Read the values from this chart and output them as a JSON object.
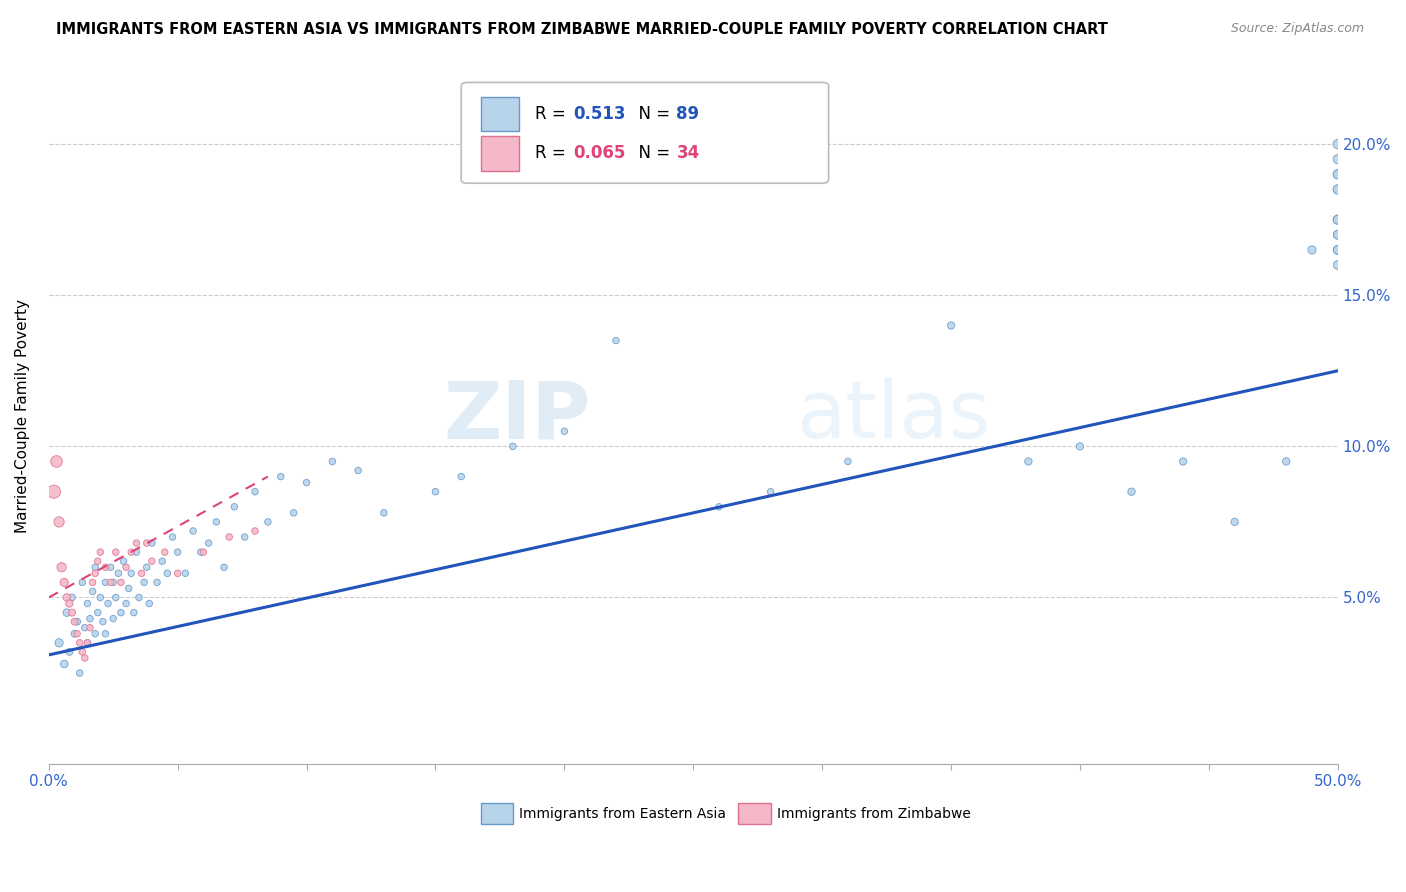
{
  "title": "IMMIGRANTS FROM EASTERN ASIA VS IMMIGRANTS FROM ZIMBABWE MARRIED-COUPLE FAMILY POVERTY CORRELATION CHART",
  "source": "Source: ZipAtlas.com",
  "ylabel": "Married-Couple Family Poverty",
  "series1_name": "Immigrants from Eastern Asia",
  "series2_name": "Immigrants from Zimbabwe",
  "series1_R": "0.513",
  "series1_N": "89",
  "series2_R": "0.065",
  "series2_N": "34",
  "series1_color": "#b8d4ea",
  "series1_edge": "#6699cc",
  "series2_color": "#f4b8c8",
  "series2_edge": "#e07090",
  "trendline1_color": "#2255bb",
  "trendline2_color": "#dd4477",
  "watermark_zip": "ZIP",
  "watermark_atlas": "atlas",
  "xlim": [
    0.0,
    0.5
  ],
  "ylim": [
    -0.005,
    0.225
  ],
  "yticks": [
    0.05,
    0.1,
    0.15,
    0.2
  ],
  "ytick_labels": [
    "5.0%",
    "10.0%",
    "15.0%",
    "20.0%"
  ],
  "trendline1_x0": 0.0,
  "trendline1_y0": 0.031,
  "trendline1_x1": 0.5,
  "trendline1_y1": 0.125,
  "trendline2_x0": 0.0,
  "trendline2_y0": 0.05,
  "trendline2_x1": 0.085,
  "trendline2_y1": 0.09,
  "series1_x": [
    0.004,
    0.006,
    0.007,
    0.008,
    0.009,
    0.01,
    0.011,
    0.012,
    0.013,
    0.014,
    0.015,
    0.015,
    0.016,
    0.017,
    0.018,
    0.018,
    0.019,
    0.02,
    0.021,
    0.022,
    0.022,
    0.023,
    0.024,
    0.025,
    0.025,
    0.026,
    0.027,
    0.028,
    0.029,
    0.03,
    0.031,
    0.032,
    0.033,
    0.034,
    0.035,
    0.037,
    0.038,
    0.039,
    0.04,
    0.042,
    0.044,
    0.046,
    0.048,
    0.05,
    0.053,
    0.056,
    0.059,
    0.062,
    0.065,
    0.068,
    0.072,
    0.076,
    0.08,
    0.085,
    0.09,
    0.095,
    0.1,
    0.11,
    0.12,
    0.13,
    0.15,
    0.16,
    0.18,
    0.2,
    0.22,
    0.26,
    0.28,
    0.31,
    0.35,
    0.38,
    0.4,
    0.42,
    0.44,
    0.46,
    0.48,
    0.49,
    0.5,
    0.5,
    0.5,
    0.5,
    0.5,
    0.5,
    0.5,
    0.5,
    0.5,
    0.5,
    0.5,
    0.5,
    0.5
  ],
  "series1_y": [
    0.035,
    0.028,
    0.045,
    0.032,
    0.05,
    0.038,
    0.042,
    0.025,
    0.055,
    0.04,
    0.048,
    0.035,
    0.043,
    0.052,
    0.038,
    0.06,
    0.045,
    0.05,
    0.042,
    0.055,
    0.038,
    0.048,
    0.06,
    0.043,
    0.055,
    0.05,
    0.058,
    0.045,
    0.062,
    0.048,
    0.053,
    0.058,
    0.045,
    0.065,
    0.05,
    0.055,
    0.06,
    0.048,
    0.068,
    0.055,
    0.062,
    0.058,
    0.07,
    0.065,
    0.058,
    0.072,
    0.065,
    0.068,
    0.075,
    0.06,
    0.08,
    0.07,
    0.085,
    0.075,
    0.09,
    0.078,
    0.088,
    0.095,
    0.092,
    0.078,
    0.085,
    0.09,
    0.1,
    0.105,
    0.135,
    0.08,
    0.085,
    0.095,
    0.14,
    0.095,
    0.1,
    0.085,
    0.095,
    0.075,
    0.095,
    0.165,
    0.17,
    0.185,
    0.19,
    0.195,
    0.16,
    0.165,
    0.175,
    0.185,
    0.165,
    0.175,
    0.17,
    0.19,
    0.2
  ],
  "series1_sizes": [
    35,
    30,
    30,
    25,
    25,
    25,
    25,
    22,
    22,
    22,
    22,
    22,
    22,
    22,
    22,
    22,
    22,
    22,
    22,
    22,
    22,
    22,
    22,
    22,
    22,
    22,
    22,
    22,
    22,
    22,
    22,
    22,
    22,
    22,
    22,
    22,
    22,
    22,
    22,
    22,
    22,
    22,
    22,
    22,
    22,
    22,
    22,
    22,
    22,
    22,
    22,
    22,
    22,
    22,
    22,
    22,
    22,
    22,
    22,
    22,
    22,
    22,
    22,
    22,
    22,
    22,
    22,
    22,
    28,
    28,
    28,
    28,
    28,
    28,
    28,
    35,
    38,
    40,
    42,
    44,
    40,
    42,
    44,
    46,
    40,
    42,
    40,
    44,
    46
  ],
  "series2_x": [
    0.002,
    0.003,
    0.004,
    0.005,
    0.006,
    0.007,
    0.008,
    0.009,
    0.01,
    0.011,
    0.012,
    0.013,
    0.014,
    0.015,
    0.016,
    0.017,
    0.018,
    0.019,
    0.02,
    0.022,
    0.024,
    0.026,
    0.028,
    0.03,
    0.032,
    0.034,
    0.036,
    0.038,
    0.04,
    0.045,
    0.05,
    0.06,
    0.07,
    0.08
  ],
  "series2_y": [
    0.085,
    0.095,
    0.075,
    0.06,
    0.055,
    0.05,
    0.048,
    0.045,
    0.042,
    0.038,
    0.035,
    0.032,
    0.03,
    0.035,
    0.04,
    0.055,
    0.058,
    0.062,
    0.065,
    0.06,
    0.055,
    0.065,
    0.055,
    0.06,
    0.065,
    0.068,
    0.058,
    0.068,
    0.062,
    0.065,
    0.058,
    0.065,
    0.07,
    0.072
  ],
  "series2_sizes": [
    90,
    70,
    55,
    45,
    35,
    30,
    28,
    26,
    24,
    22,
    22,
    22,
    22,
    22,
    22,
    22,
    22,
    22,
    22,
    22,
    22,
    22,
    22,
    22,
    22,
    22,
    22,
    22,
    22,
    22,
    22,
    22,
    22,
    22
  ]
}
